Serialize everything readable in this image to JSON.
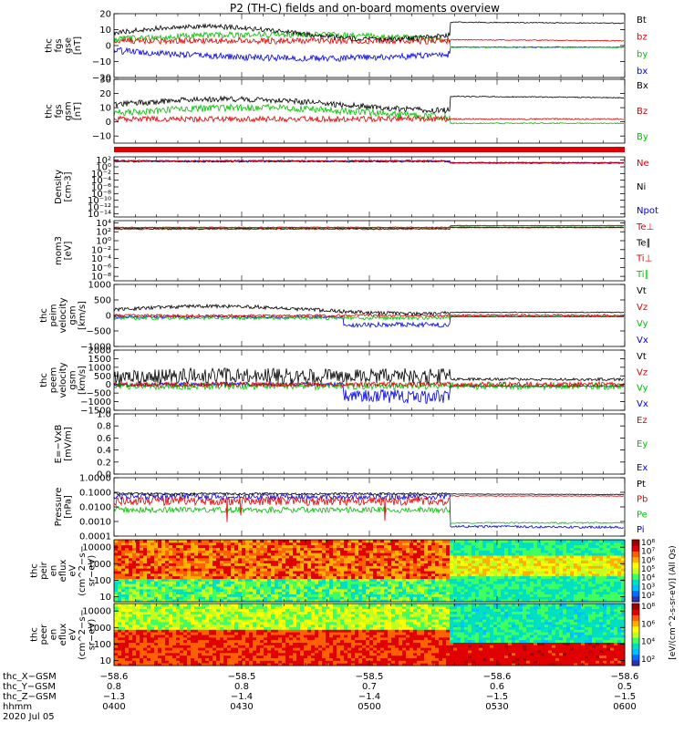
{
  "title": "P2 (TH-C) fields and on-board moments overview",
  "colors": {
    "black": "#000000",
    "red": "#e00000",
    "green": "#00c000",
    "blue": "#0000e0"
  },
  "panels": [
    {
      "id": "fgs_gse",
      "ylabel": [
        "thc",
        "fgs",
        "gse",
        "[nT]"
      ],
      "ticks": [
        "20",
        "10",
        "0",
        "−10",
        "−20"
      ],
      "tickVals": [
        20,
        10,
        0,
        -10,
        -20
      ],
      "ymin": -20,
      "ymax": 20,
      "legend": [
        {
          "label": "Bt",
          "color": "black"
        },
        {
          "label": "bz",
          "color": "red"
        },
        {
          "label": "by",
          "color": "green"
        },
        {
          "label": "bx",
          "color": "blue"
        }
      ]
    },
    {
      "id": "fgs_gsm",
      "ylabel": [
        "thc",
        "fgs",
        "gsm",
        "[nT]"
      ],
      "ticks": [
        "30",
        "20",
        "10",
        "0",
        "−10"
      ],
      "tickVals": [
        30,
        20,
        10,
        0,
        -10
      ],
      "ymin": -15,
      "ymax": 30,
      "legend": [
        {
          "label": "Bx",
          "color": "black"
        },
        {
          "label": "Bz",
          "color": "red"
        },
        {
          "label": "By",
          "color": "green"
        }
      ]
    },
    {
      "id": "density",
      "ylabel": [
        "Density",
        "[cm-3]"
      ],
      "ticks": [
        "10²",
        "10⁰",
        "10⁻²",
        "10⁻⁴",
        "10⁻⁶",
        "10⁻⁸",
        "10⁻¹⁰",
        "10⁻¹²",
        "10⁻¹⁴"
      ],
      "tickVals": [
        2,
        0,
        -2,
        -4,
        -6,
        -8,
        -10,
        -12,
        -14
      ],
      "ymin": -15,
      "ymax": 3,
      "legend": [
        {
          "label": "Ne",
          "color": "red"
        },
        {
          "label": "Ni",
          "color": "black"
        },
        {
          "label": "Npot",
          "color": "blue"
        }
      ]
    },
    {
      "id": "temp",
      "ylabel": [
        "mom3",
        "[eV]"
      ],
      "ticks": [
        "10⁴",
        "10²",
        "10⁰",
        "10⁻²",
        "10⁻⁴",
        "10⁻⁶",
        "10⁻⁸"
      ],
      "tickVals": [
        4,
        2,
        0,
        -2,
        -4,
        -6,
        -8
      ],
      "ymin": -9,
      "ymax": 4.5,
      "legend": [
        {
          "label": "Te⊥",
          "color": "red"
        },
        {
          "label": "Te∥",
          "color": "black"
        },
        {
          "label": "Ti⊥",
          "color": "red"
        },
        {
          "label": "Ti∥",
          "color": "green"
        }
      ]
    },
    {
      "id": "peim_vel",
      "ylabel": [
        "thc",
        "peim",
        "velocity",
        "gsm",
        "[km/s]"
      ],
      "ticks": [
        "1000",
        "500",
        "0",
        "−500",
        "−1000"
      ],
      "tickVals": [
        1000,
        500,
        0,
        -500,
        -1000
      ],
      "ymin": -1000,
      "ymax": 1000,
      "legend": [
        {
          "label": "Vt",
          "color": "black"
        },
        {
          "label": "Vz",
          "color": "red"
        },
        {
          "label": "Vy",
          "color": "green"
        },
        {
          "label": "Vx",
          "color": "blue"
        }
      ]
    },
    {
      "id": "peem_vel",
      "ylabel": [
        "thc",
        "peem",
        "velocity",
        "gsm",
        "[km/s]"
      ],
      "ticks": [
        "2000",
        "1500",
        "1000",
        "500",
        "0",
        "−500",
        "−1000",
        "−1500"
      ],
      "tickVals": [
        2000,
        1500,
        1000,
        500,
        0,
        -500,
        -1000,
        -1500
      ],
      "ymin": -1500,
      "ymax": 2000,
      "legend": [
        {
          "label": "Vt",
          "color": "black"
        },
        {
          "label": "Vz",
          "color": "red"
        },
        {
          "label": "Vy",
          "color": "green"
        },
        {
          "label": "Vx",
          "color": "blue"
        }
      ]
    },
    {
      "id": "efield",
      "ylabel": [
        "E=−VxB",
        "[mV/m]"
      ],
      "ticks": [
        "1.0",
        "0.8",
        "0.6",
        "0.4",
        "0.2",
        "0.0"
      ],
      "tickVals": [
        1.0,
        0.8,
        0.6,
        0.4,
        0.2,
        0.0
      ],
      "ymin": 0,
      "ymax": 1,
      "legend": [
        {
          "label": "Ez",
          "color": "red"
        },
        {
          "label": "Ey",
          "color": "green"
        },
        {
          "label": "Ex",
          "color": "blue"
        }
      ]
    },
    {
      "id": "pressure",
      "ylabel": [
        "Pressure",
        "[nPa]"
      ],
      "ticks": [
        "1.0000",
        "0.1000",
        "0.0100",
        "0.0010",
        "0.0001"
      ],
      "tickVals": [
        0,
        -1,
        -2,
        -3,
        -4
      ],
      "ymin": -4,
      "ymax": 0,
      "legend": [
        {
          "label": "Pt",
          "color": "black"
        },
        {
          "label": "Pb",
          "color": "red"
        },
        {
          "label": "Pe",
          "color": "green"
        },
        {
          "label": "Pi",
          "color": "blue"
        }
      ]
    },
    {
      "id": "peir_spec",
      "ylabel": [
        "thc",
        "peir",
        "en",
        "eflux",
        "eV",
        "(cm^2−s−",
        "sr−eV)"
      ],
      "ticks": [
        "10000",
        "1000",
        "100",
        "10"
      ],
      "tickVals": [
        4,
        3,
        2,
        1
      ],
      "ymin": 0.7,
      "ymax": 4.45
    },
    {
      "id": "peer_spec",
      "ylabel": [
        "thc",
        "peer",
        "en",
        "eflux",
        "eV",
        "(cm^2−s−",
        "sr−eV)"
      ],
      "ticks": [
        "10000",
        "1000",
        "100",
        "10"
      ],
      "tickVals": [
        4,
        3,
        2,
        1
      ],
      "ymin": 0.7,
      "ymax": 4.45
    }
  ],
  "colorbar": {
    "label": "[eV/(cm^2-s-sr-eV)] (All Qs)",
    "ticks1": [
      "10⁸",
      "10⁷",
      "10⁶",
      "10⁵",
      "10⁴",
      "10³",
      "10²"
    ],
    "ticks2": [
      "10⁸",
      "10⁶",
      "10⁴",
      "10²"
    ]
  },
  "xaxis": {
    "rows": [
      {
        "label": "thc_X−GSM",
        "values": [
          "−58.6",
          "−58.5",
          "−58.5",
          "−58.6",
          "−58.6"
        ]
      },
      {
        "label": "thc_Y−GSM",
        "values": [
          "0.8",
          "0.8",
          "0.7",
          "0.6",
          "0.5"
        ]
      },
      {
        "label": "thc_Z−GSM",
        "values": [
          "−1.3",
          "−1.4",
          "−1.4",
          "−1.5",
          "−1.5"
        ]
      },
      {
        "label": "hhmm",
        "values": [
          "0400",
          "0430",
          "0500",
          "0530",
          "0600"
        ]
      }
    ],
    "date": "2020 Jul 05"
  },
  "chart_data": [
    {
      "type": "line",
      "title": "P2 (TH-C) fields and on-board moments overview",
      "panel": "fgs_gse",
      "ylabel": "thc fgs gse [nT]",
      "ylim": [
        -20,
        20
      ],
      "x": [
        "0400",
        "0430",
        "0500",
        "0530",
        "0600"
      ],
      "series": [
        {
          "name": "Bt",
          "values": [
            5,
            12,
            8,
            15,
            16
          ]
        },
        {
          "name": "bz",
          "values": [
            3,
            5,
            2,
            5,
            4
          ]
        },
        {
          "name": "by",
          "values": [
            2,
            4,
            6,
            0,
            -2
          ]
        },
        {
          "name": "bx",
          "values": [
            -2,
            -5,
            -8,
            -1,
            -1
          ]
        }
      ]
    },
    {
      "type": "line",
      "panel": "fgs_gsm",
      "ylabel": "thc fgs gsm [nT]",
      "ylim": [
        -15,
        30
      ],
      "x": [
        "0400",
        "0430",
        "0500",
        "0530",
        "0600"
      ],
      "series": [
        {
          "name": "Bx",
          "values": [
            10,
            16,
            5,
            22,
            18
          ]
        },
        {
          "name": "Bz",
          "values": [
            2,
            4,
            3,
            3,
            2
          ]
        },
        {
          "name": "By",
          "values": [
            5,
            8,
            12,
            0,
            -1
          ]
        }
      ]
    },
    {
      "type": "line",
      "panel": "density",
      "ylabel": "Density [cm-3]",
      "yscale": "log",
      "series": [
        {
          "name": "Ne",
          "values": [
            3,
            3,
            3,
            0.5,
            0.5
          ]
        },
        {
          "name": "Ni",
          "values": [
            3,
            3,
            3,
            0.5,
            0.5
          ]
        },
        {
          "name": "Npot",
          "values": [
            3,
            3,
            3,
            0.5,
            0.5
          ]
        }
      ]
    },
    {
      "type": "line",
      "panel": "temp",
      "ylabel": "mom3 [eV]",
      "yscale": "log",
      "series": [
        {
          "name": "Te⊥",
          "values": [
            200,
            200,
            300,
            1000,
            1000
          ]
        },
        {
          "name": "Te∥",
          "values": [
            200,
            200,
            300,
            1000,
            1000
          ]
        },
        {
          "name": "Ti⊥",
          "values": [
            800,
            800,
            900,
            3000,
            3000
          ]
        },
        {
          "name": "Ti∥",
          "values": [
            800,
            800,
            900,
            3000,
            3000
          ]
        }
      ]
    },
    {
      "type": "line",
      "panel": "peim_vel",
      "ylabel": "thc peim velocity gsm [km/s]",
      "ylim": [
        -1000,
        1000
      ],
      "series": [
        {
          "name": "Vt",
          "values": [
            100,
            250,
            200,
            150,
            80
          ]
        },
        {
          "name": "Vz",
          "values": [
            0,
            20,
            0,
            0,
            0
          ]
        },
        {
          "name": "Vy",
          "values": [
            -50,
            -100,
            -50,
            0,
            0
          ]
        },
        {
          "name": "Vx",
          "values": [
            -30,
            -50,
            -300,
            -100,
            -50
          ]
        }
      ]
    },
    {
      "type": "line",
      "panel": "peem_vel",
      "ylabel": "thc peem velocity gsm [km/s]",
      "ylim": [
        -1500,
        2000
      ],
      "series": [
        {
          "name": "Vt",
          "values": [
            500,
            700,
            600,
            400,
            300
          ]
        },
        {
          "name": "Vz",
          "values": [
            0,
            0,
            0,
            0,
            0
          ]
        },
        {
          "name": "Vy",
          "values": [
            -100,
            -100,
            -200,
            0,
            0
          ]
        },
        {
          "name": "Vx",
          "values": [
            0,
            -50,
            -600,
            -300,
            -100
          ]
        }
      ]
    },
    {
      "type": "line",
      "panel": "efield",
      "ylabel": "E=−VxB [mV/m]",
      "ylim": [
        0,
        1
      ],
      "series": [
        {
          "name": "Ez",
          "values": []
        },
        {
          "name": "Ey",
          "values": []
        },
        {
          "name": "Ex",
          "values": []
        }
      ]
    },
    {
      "type": "line",
      "panel": "pressure",
      "ylabel": "Pressure [nPa]",
      "yscale": "log",
      "ylim": [
        0.0001,
        1
      ],
      "series": [
        {
          "name": "Pt",
          "values": [
            0.08,
            0.09,
            0.1,
            0.08,
            0.07
          ]
        },
        {
          "name": "Pb",
          "values": [
            0.02,
            0.03,
            0.02,
            0.06,
            0.06
          ]
        },
        {
          "name": "Pe",
          "values": [
            0.005,
            0.006,
            0.008,
            0.0008,
            0.0006
          ]
        },
        {
          "name": "Pi",
          "values": [
            0.05,
            0.06,
            0.08,
            0.0008,
            0.0004
          ]
        }
      ]
    },
    {
      "type": "heatmap",
      "panel": "peir_spec",
      "ylabel": "thc peir en eflux eV (cm^2−s−sr−eV)",
      "yscale": "log",
      "ylim": [
        10,
        10000
      ]
    },
    {
      "type": "heatmap",
      "panel": "peer_spec",
      "ylabel": "thc peer en eflux eV (cm^2−s−sr−eV)",
      "yscale": "log",
      "ylim": [
        10,
        10000
      ]
    }
  ]
}
